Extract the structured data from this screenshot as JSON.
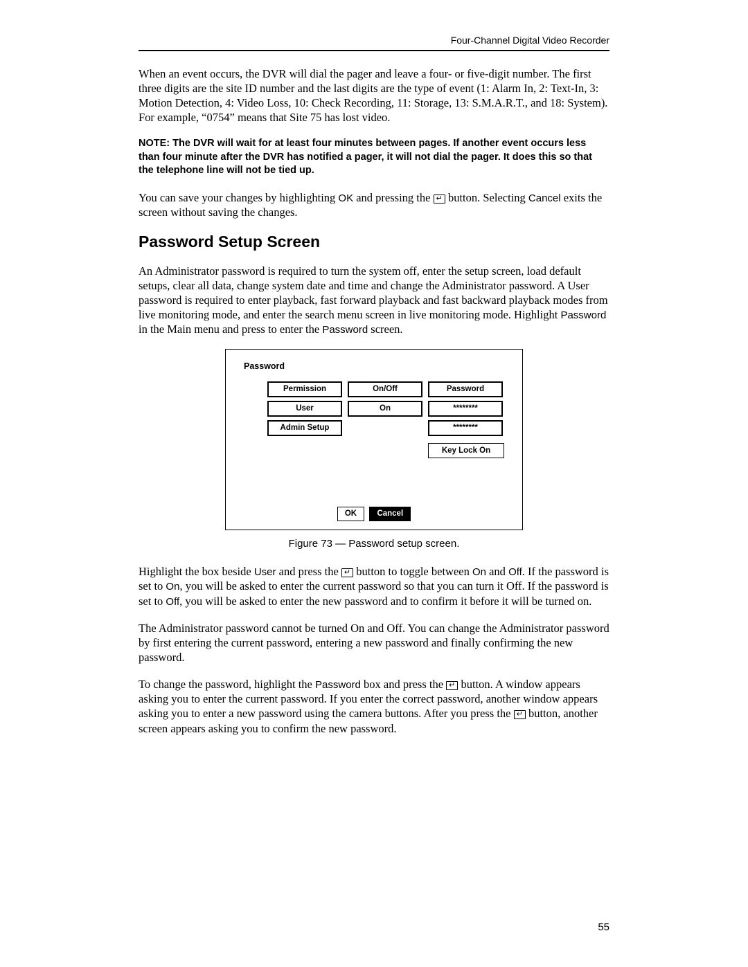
{
  "header": {
    "running": "Four-Channel Digital Video Recorder"
  },
  "p1": "When an event occurs, the DVR will dial the pager and leave a four- or five-digit number.  The first three digits are the site ID number and the last digits are the type of event (1: Alarm In, 2: Text-In, 3: Motion Detection, 4: Video Loss, 10: Check Recording, 11: Storage, 13: S.M.A.R.T., and 18: System).  For example, “0754” means that Site 75 has lost video.",
  "note": "NOTE:  The DVR will wait for at least four minutes between pages.  If another event occurs less than four minute after the DVR has notified a pager, it will not dial the pager.  It does this so that the telephone line will not be tied up.",
  "p2a": "You can save your changes by highlighting ",
  "p2_ok": "OK",
  "p2b": " and pressing the ",
  "p2c": " button.  Selecting ",
  "p2_cancel": "Cancel",
  "p2d": " exits the screen without saving the changes.",
  "h2": "Password Setup Screen",
  "p3a": "An Administrator password is required to turn the system off, enter the setup screen, load default setups, clear all data, change system date and time and change the Administrator password.  A User password is required to enter playback, fast forward playback and fast backward playback modes from live monitoring mode, and enter the search menu screen in live monitoring mode.  Highlight ",
  "p3_pw1": "Password",
  "p3b": " in the Main menu and press to enter the ",
  "p3_pw2": "Password",
  "p3c": " screen.",
  "shot": {
    "title": "Password",
    "col1": "Permission",
    "col2": "On/Off",
    "col3": "Password",
    "r1c1": "User",
    "r1c2": "On",
    "r1c3": "********",
    "r2c1": "Admin Setup",
    "r2c3": "********",
    "keylock": "Key Lock On",
    "ok": "OK",
    "cancel": "Cancel"
  },
  "caption": "Figure 73 — Password setup screen.",
  "p4a": "Highlight the box beside ",
  "p4_user": "User",
  "p4b": " and press the ",
  "p4c": " button to toggle between ",
  "p4_on": "On",
  "p4d": " and ",
  "p4_off": "Off",
  "p4e": ".  If the password is set to ",
  "p4_on2": "On",
  "p4f": ", you will be asked to enter the current password so that you can turn it Off.  If the password is set to ",
  "p4_off2": "Off",
  "p4g": ", you will be asked to enter the new password and to confirm it before it will be turned on.",
  "p5": "The Administrator password cannot be turned On and Off.  You can change the Administrator password by first entering the current password, entering a new password and finally confirming the new password.",
  "p6a": "To change the password, highlight the ",
  "p6_pw": "Password",
  "p6b": " box and press the ",
  "p6c": " button.  A window appears asking you to enter the current password.  If you enter the correct password, another window appears asking you to enter a new password using the camera buttons.  After you press the ",
  "p6d": " button, another screen appears asking you to confirm the new password.",
  "pagenum": "55",
  "enter_glyph": "↵"
}
